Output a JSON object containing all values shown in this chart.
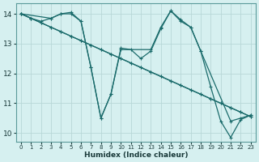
{
  "xlabel": "Humidex (Indice chaleur)",
  "bg_color": "#d6f0f0",
  "line_color": "#1a6b6b",
  "grid_color": "#b8d8d8",
  "xlim": [
    -0.5,
    23.5
  ],
  "ylim": [
    9.7,
    14.35
  ],
  "yticks": [
    10,
    11,
    12,
    13,
    14
  ],
  "xticks": [
    0,
    1,
    2,
    3,
    4,
    5,
    6,
    7,
    8,
    9,
    10,
    11,
    12,
    13,
    14,
    15,
    16,
    17,
    18,
    19,
    20,
    21,
    22,
    23
  ],
  "series": [
    {
      "x": [
        0,
        1,
        2,
        3,
        4,
        5,
        6,
        7,
        8,
        9,
        10,
        11,
        12,
        13,
        14,
        15,
        16,
        17,
        18,
        19,
        20,
        21,
        22,
        23
      ],
      "y": [
        14.0,
        13.85,
        13.7,
        13.55,
        13.4,
        13.25,
        13.1,
        12.95,
        12.8,
        12.65,
        12.5,
        12.35,
        12.2,
        12.05,
        11.9,
        11.75,
        11.6,
        11.45,
        11.3,
        11.15,
        11.0,
        10.85,
        10.7,
        10.55
      ]
    },
    {
      "x": [
        0,
        1,
        2,
        3,
        4,
        5,
        6,
        7,
        8,
        9,
        10,
        11,
        12,
        13,
        14,
        15,
        16,
        17,
        18,
        19,
        20,
        21,
        22,
        23
      ],
      "y": [
        14.0,
        13.85,
        13.7,
        13.55,
        13.4,
        13.25,
        13.1,
        12.95,
        12.8,
        12.65,
        12.5,
        12.35,
        12.2,
        12.05,
        11.9,
        11.75,
        11.6,
        11.45,
        11.3,
        11.15,
        11.0,
        10.85,
        10.7,
        10.55
      ]
    },
    {
      "x": [
        0,
        3,
        4,
        5,
        6,
        7,
        8,
        9,
        10,
        13,
        14,
        15,
        16,
        17,
        18,
        21,
        22,
        23
      ],
      "y": [
        14.0,
        13.85,
        14.0,
        14.0,
        13.75,
        12.2,
        10.5,
        11.3,
        12.8,
        12.8,
        13.55,
        14.1,
        13.8,
        13.55,
        12.75,
        10.4,
        10.5,
        10.6
      ]
    },
    {
      "x": [
        0,
        1,
        2,
        3,
        4,
        5,
        6,
        7,
        8,
        9,
        10,
        11,
        12,
        13,
        14,
        15,
        16,
        17,
        18,
        19,
        20,
        21,
        22,
        23
      ],
      "y": [
        14.0,
        13.85,
        13.75,
        13.85,
        14.0,
        14.05,
        13.75,
        12.2,
        10.5,
        11.3,
        12.85,
        12.8,
        12.5,
        12.75,
        13.5,
        14.1,
        13.75,
        13.55,
        12.75,
        11.55,
        10.4,
        9.85,
        10.45,
        10.6
      ]
    }
  ]
}
